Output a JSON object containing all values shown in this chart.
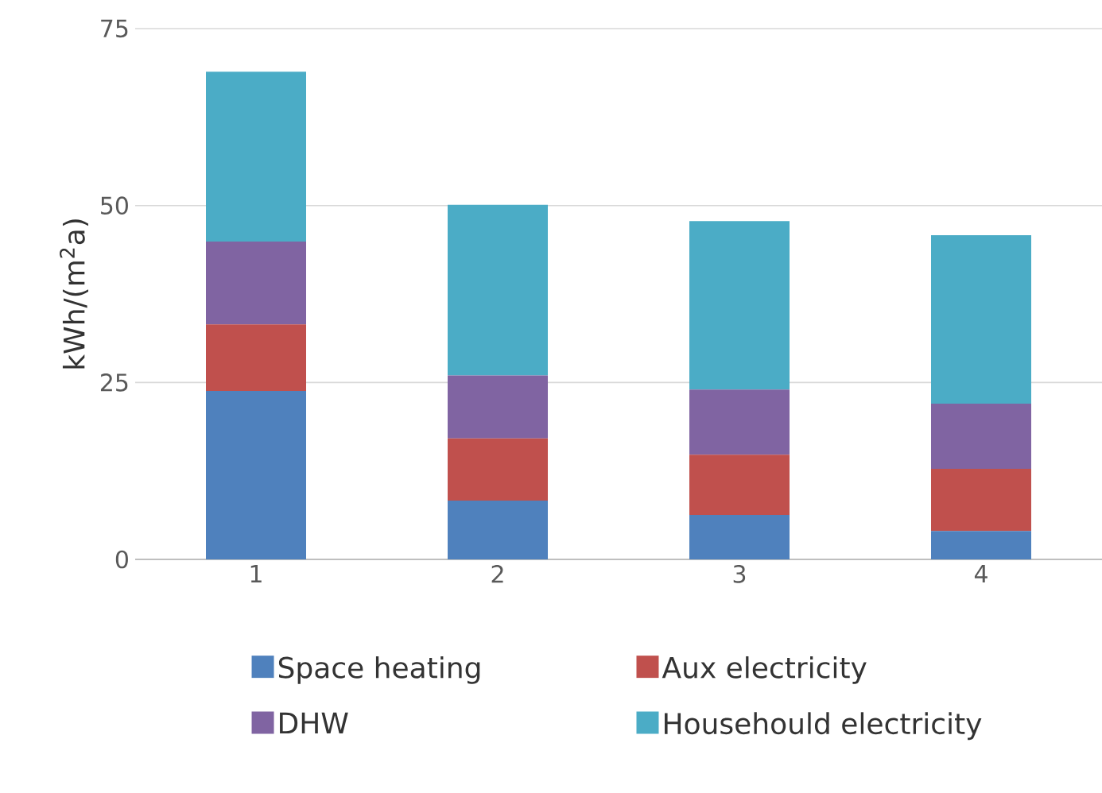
{
  "chart_data": {
    "type": "bar",
    "stacked": true,
    "ylabel": "kWh/(m$^{2}$a)",
    "categories": [
      "1",
      "2",
      "3",
      "4"
    ],
    "series": [
      {
        "name": "Space heating",
        "color": "#4f81bd",
        "values": [
          23.8,
          8.3,
          6.3,
          4.0
        ]
      },
      {
        "name": "Aux electricity",
        "color": "#c0504d",
        "values": [
          9.4,
          8.8,
          8.5,
          8.8
        ]
      },
      {
        "name": "DHW",
        "color": "#8064a2",
        "values": [
          11.7,
          8.9,
          9.2,
          9.2
        ]
      },
      {
        "name": "Househould electricity",
        "color": "#4bacc6",
        "values": [
          24.0,
          24.1,
          23.8,
          23.8
        ]
      }
    ],
    "ylim": [
      0,
      75
    ],
    "yticks": [
      0,
      25,
      50,
      75
    ],
    "grid": "y",
    "legend": "bottom"
  }
}
